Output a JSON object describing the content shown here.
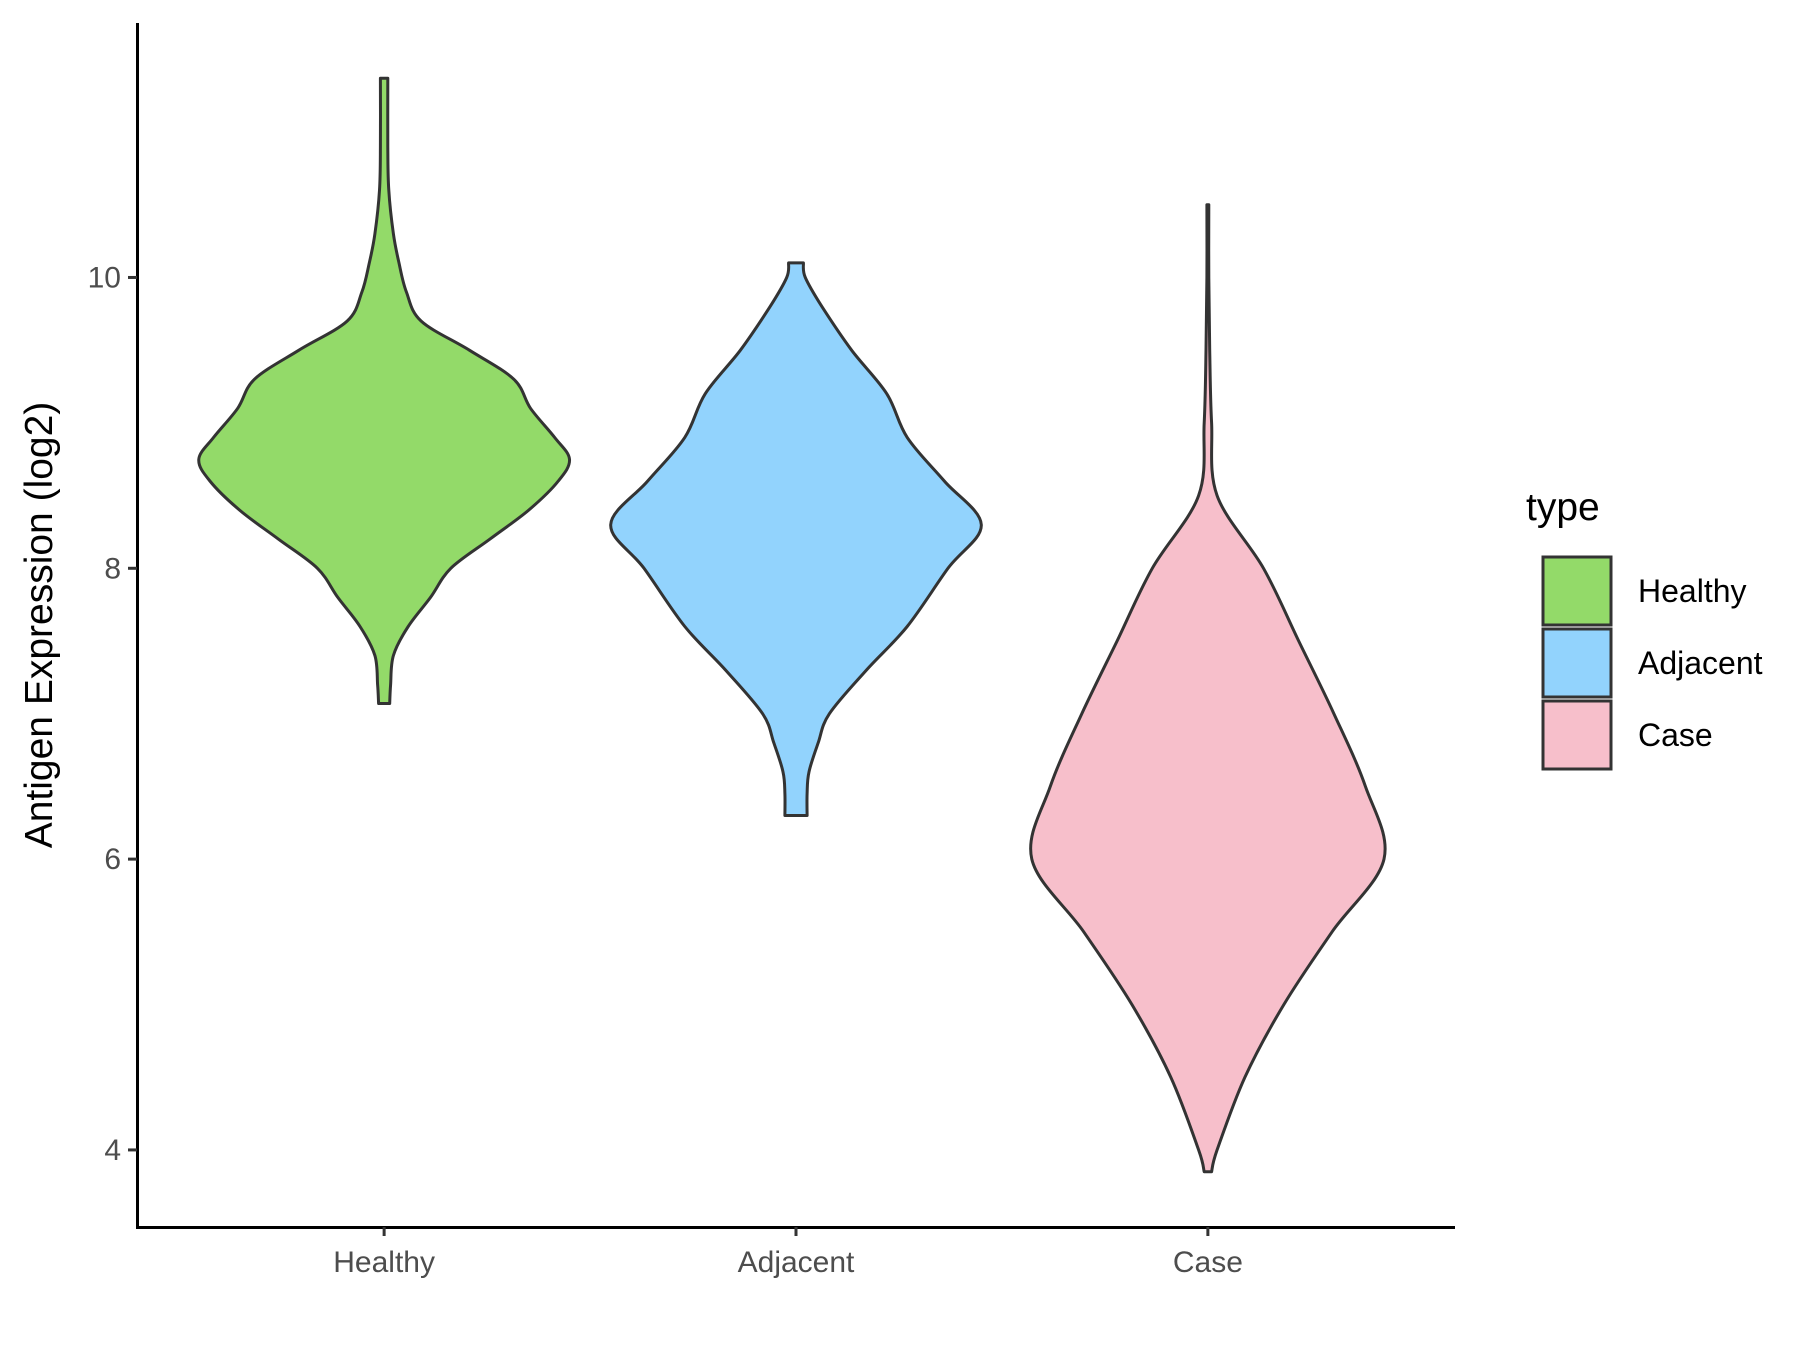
{
  "chart_data": {
    "type": "violin",
    "xlabel": "",
    "ylabel": "Antigen Expression (log2)",
    "ylim": [
      3.47,
      11.75
    ],
    "yticks": [
      "4",
      "6",
      "8",
      "10"
    ],
    "categories": [
      "Healthy",
      "Adjacent",
      "Case"
    ],
    "grid": false,
    "legend": {
      "title": "type",
      "position": "right",
      "entries": [
        "Healthy",
        "Adjacent",
        "Case"
      ]
    },
    "series": [
      {
        "name": "Healthy",
        "color": "#93DA69",
        "range": [
          7.07,
          11.37
        ],
        "profile": [
          [
            7.07,
            0.03
          ],
          [
            7.2,
            0.035
          ],
          [
            7.4,
            0.05
          ],
          [
            7.6,
            0.13
          ],
          [
            7.8,
            0.25
          ],
          [
            8.0,
            0.36
          ],
          [
            8.2,
            0.57
          ],
          [
            8.4,
            0.78
          ],
          [
            8.6,
            0.94
          ],
          [
            8.75,
            1.0
          ],
          [
            8.9,
            0.92
          ],
          [
            9.1,
            0.79
          ],
          [
            9.3,
            0.7
          ],
          [
            9.5,
            0.46
          ],
          [
            9.7,
            0.2
          ],
          [
            9.9,
            0.12
          ],
          [
            10.1,
            0.08
          ],
          [
            10.3,
            0.05
          ],
          [
            10.6,
            0.025
          ],
          [
            10.9,
            0.02
          ],
          [
            11.37,
            0.02
          ]
        ]
      },
      {
        "name": "Adjacent",
        "color": "#92D3FD",
        "range": [
          6.3,
          10.1
        ],
        "profile": [
          [
            6.3,
            0.06
          ],
          [
            6.45,
            0.06
          ],
          [
            6.6,
            0.07
          ],
          [
            6.8,
            0.12
          ],
          [
            7.0,
            0.18
          ],
          [
            7.3,
            0.38
          ],
          [
            7.6,
            0.6
          ],
          [
            8.0,
            0.82
          ],
          [
            8.3,
            1.0
          ],
          [
            8.6,
            0.8
          ],
          [
            8.9,
            0.6
          ],
          [
            9.2,
            0.49
          ],
          [
            9.5,
            0.3
          ],
          [
            9.8,
            0.14
          ],
          [
            10.0,
            0.05
          ],
          [
            10.1,
            0.04
          ]
        ]
      },
      {
        "name": "Case",
        "color": "#F7BFCB",
        "range": [
          3.85,
          10.5
        ],
        "profile": [
          [
            3.85,
            0.02
          ],
          [
            4.0,
            0.05
          ],
          [
            4.5,
            0.2
          ],
          [
            5.0,
            0.41
          ],
          [
            5.5,
            0.67
          ],
          [
            6.0,
            0.95
          ],
          [
            6.5,
            0.85
          ],
          [
            7.0,
            0.68
          ],
          [
            7.5,
            0.49
          ],
          [
            8.0,
            0.3
          ],
          [
            8.5,
            0.05
          ],
          [
            9.0,
            0.02
          ],
          [
            9.5,
            0.01
          ],
          [
            10.0,
            0.005
          ],
          [
            10.5,
            0.005
          ]
        ]
      }
    ]
  }
}
